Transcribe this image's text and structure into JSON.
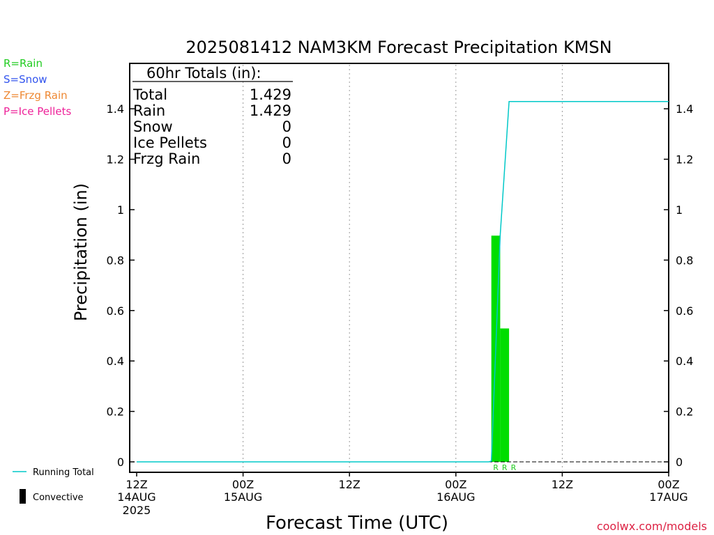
{
  "chart_data": {
    "type": "bar",
    "title": "2025081412 NAM3KM Forecast Precipitation KMSN",
    "xlabel": "Forecast Time (UTC)",
    "ylabel": "Precipitation (in)",
    "ylim": [
      0,
      1.58
    ],
    "xlim_hours": [
      0,
      60
    ],
    "y_ticks": [
      "0",
      "0.2",
      "0.4",
      "0.6",
      "0.8",
      "1",
      "1.2",
      "1.4"
    ],
    "x_ticks": [
      {
        "hour": 0,
        "time": "12Z",
        "date": "14AUG",
        "year": "2025"
      },
      {
        "hour": 12,
        "time": "00Z",
        "date": "15AUG",
        "year": ""
      },
      {
        "hour": 24,
        "time": "12Z",
        "date": "",
        "year": ""
      },
      {
        "hour": 36,
        "time": "00Z",
        "date": "16AUG",
        "year": ""
      },
      {
        "hour": 48,
        "time": "12Z",
        "date": "",
        "year": ""
      },
      {
        "hour": 60,
        "time": "00Z",
        "date": "17AUG",
        "year": ""
      }
    ],
    "grid": "vertical-dotted",
    "legend_placement": "left",
    "precip_type_legend": [
      {
        "label": "R=Rain",
        "color": "#22cc22"
      },
      {
        "label": "S=Snow",
        "color": "#3355ee"
      },
      {
        "label": "Z=Frzg Rain",
        "color": "#ee8833"
      },
      {
        "label": "P=Ice Pellets",
        "color": "#ee2299"
      }
    ],
    "series_legend": {
      "running_total_label": "Running Total",
      "convective_label": "Convective"
    },
    "bars": [
      {
        "start_hour": 40,
        "end_hour": 41,
        "value": 0.897,
        "type": "R",
        "color": "#00dd00"
      },
      {
        "start_hour": 41,
        "end_hour": 42,
        "value": 0.529,
        "type": "R",
        "color": "#00dd00"
      }
    ],
    "running_total": {
      "color": "#00c8c8",
      "x": [
        0,
        39.7,
        40,
        41,
        42,
        60
      ],
      "y": [
        0,
        0,
        0.003,
        0.9,
        1.429,
        1.429
      ]
    },
    "totals_box": {
      "header": "60hr Totals (in):",
      "rows": [
        {
          "label": "Total",
          "value": "1.429"
        },
        {
          "label": "Rain",
          "value": "1.429"
        },
        {
          "label": "Snow",
          "value": "0"
        },
        {
          "label": "Ice Pellets",
          "value": "0"
        },
        {
          "label": "Frzg Rain",
          "value": "0"
        }
      ]
    },
    "credit": "coolwx.com/models"
  }
}
